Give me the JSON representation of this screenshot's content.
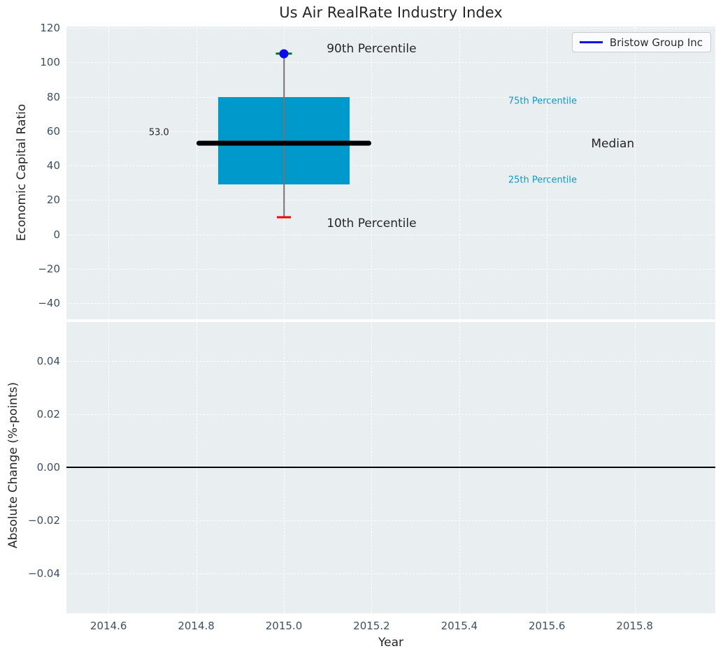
{
  "title": "Us Air RealRate Industry Index",
  "legend": {
    "label": "Bristow Group Inc",
    "position": "upper right"
  },
  "colors": {
    "figure_bg": "#ffffff",
    "axes_bg": "#e9eef1",
    "grid": "#ffffff",
    "tick_label": "#3c4f63",
    "text_dark": "#262626",
    "cyan_text": "#0f9ad0",
    "box_fill": "#0099cc",
    "median_line": "#000000",
    "whisker": "#757575",
    "p90_cap_green": "#007d00",
    "p90_dot_blue": "#0b0bee",
    "p10_cap_red": "#f40000",
    "legend_line_blue": "#0b0bee",
    "zero_line": "#000000"
  },
  "chart_data": [
    {
      "type": "box",
      "title": "Us Air RealRate Industry Index",
      "ylabel": "Economic Capital Ratio",
      "legend_entries": [
        "Bristow Group Inc"
      ],
      "legend_position": "upper right",
      "grid": true,
      "xlim": [
        2014.504,
        2015.984
      ],
      "ylim": [
        -49.3,
        120.8
      ],
      "xtick_values": [
        2014.6,
        2014.8,
        2015.0,
        2015.2,
        2015.4,
        2015.6,
        2015.8
      ],
      "ytick_values": [
        120,
        100,
        80,
        60,
        40,
        20,
        0,
        -20,
        -40
      ],
      "ytick_labels": [
        "120",
        "100",
        "80",
        "60",
        "40",
        "20",
        "0",
        "−20",
        "−40"
      ],
      "series": [
        {
          "name": "Bristow Group Inc",
          "x": 2015.0,
          "p10": 10,
          "p25": 29,
          "median": 53.0,
          "p75": 80,
          "p90": 105,
          "box_half_width": 0.15,
          "median_half_width": 0.2,
          "median_label": "53.0"
        }
      ],
      "annotations": [
        {
          "text": "90th Percentile",
          "x": 2015.2,
          "y": 108,
          "size": 17,
          "color": "dark"
        },
        {
          "text": "75th Percentile",
          "x": 2015.59,
          "y": 77.5,
          "size": 13,
          "color": "cyan"
        },
        {
          "text": "Median",
          "x": 2015.75,
          "y": 52.5,
          "size": 17,
          "color": "dark"
        },
        {
          "text": "25th Percentile",
          "x": 2015.59,
          "y": 31.5,
          "size": 13,
          "color": "cyan"
        },
        {
          "text": "10th Percentile",
          "x": 2015.2,
          "y": 6.5,
          "size": 17,
          "color": "dark"
        },
        {
          "text": "53.0",
          "x": 2014.715,
          "y": 59,
          "size": 13,
          "color": "dark"
        }
      ]
    },
    {
      "type": "line",
      "ylabel": "Absolute Change (%-points)",
      "xlabel": "Year",
      "grid": true,
      "xlim": [
        2014.504,
        2015.984
      ],
      "ylim": [
        -0.055,
        0.0547
      ],
      "xtick_values": [
        2014.6,
        2014.8,
        2015.0,
        2015.2,
        2015.4,
        2015.6,
        2015.8
      ],
      "xtick_labels": [
        "2014.6",
        "2014.8",
        "2015.0",
        "2015.2",
        "2015.4",
        "2015.6",
        "2015.8"
      ],
      "ytick_values": [
        0.04,
        0.02,
        0.0,
        -0.02,
        -0.04
      ],
      "ytick_labels": [
        "0.04",
        "0.02",
        "0.00",
        "−0.02",
        "−0.04"
      ],
      "zero_line_y": 0.0,
      "series": []
    }
  ]
}
